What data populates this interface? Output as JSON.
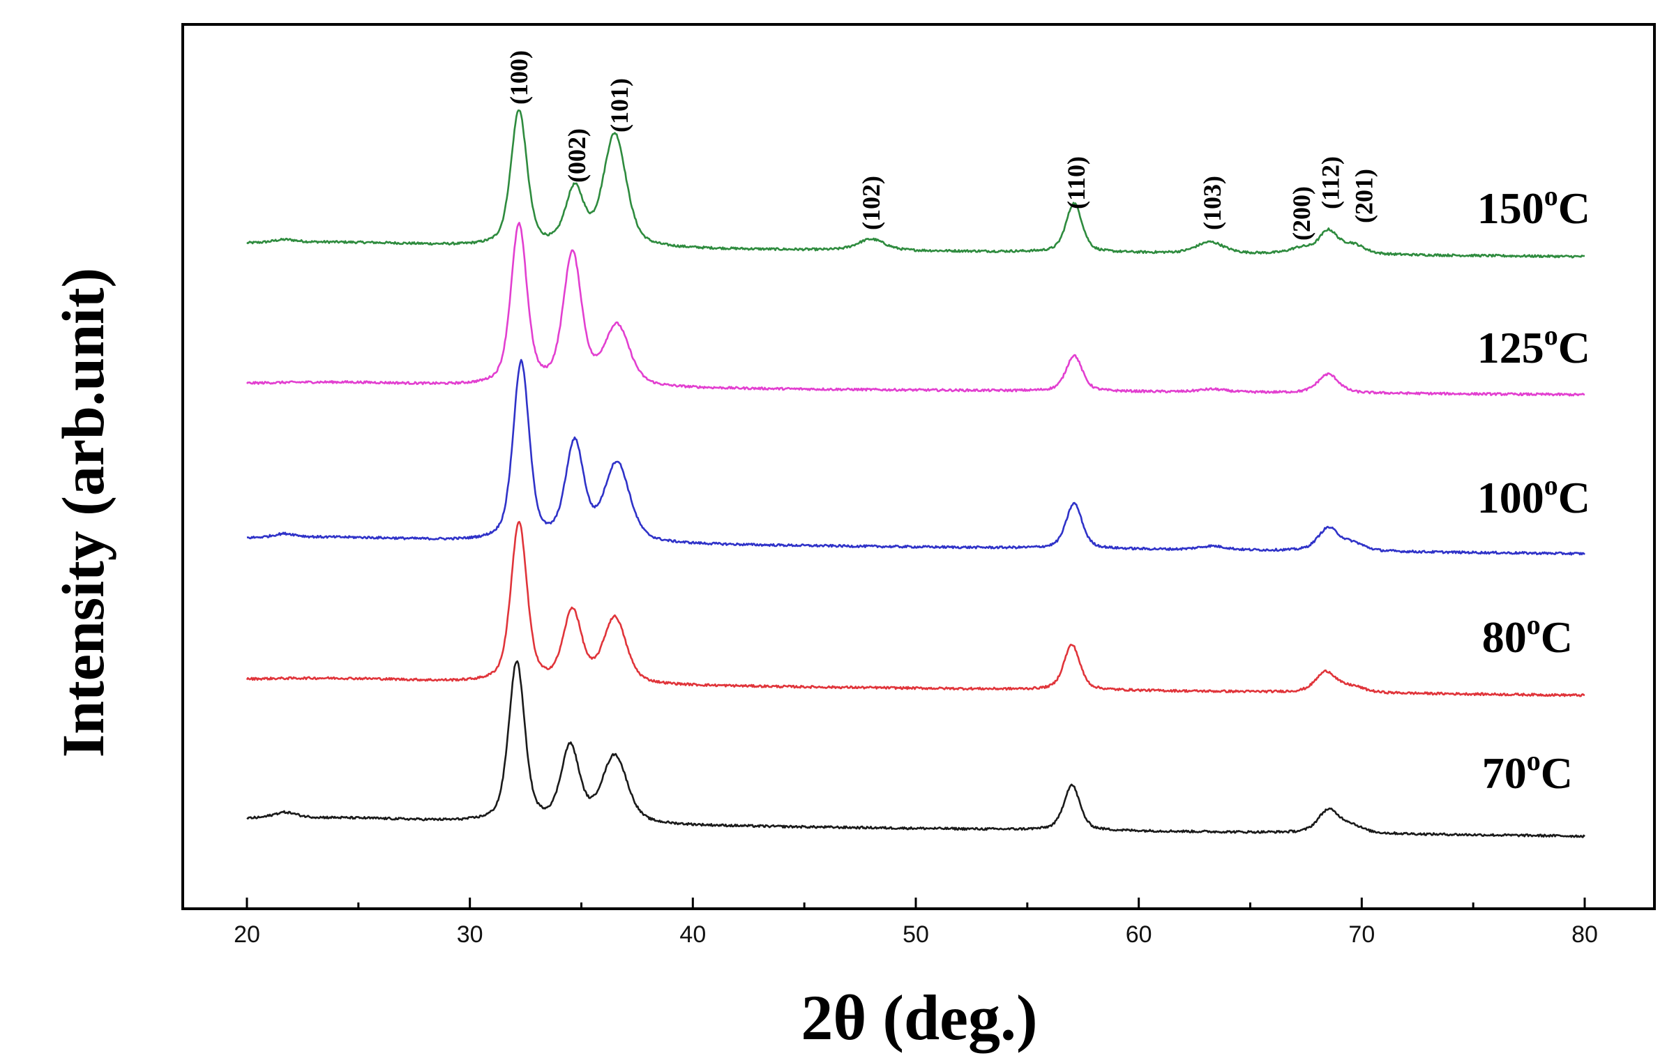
{
  "chart_data": {
    "type": "line",
    "title": "",
    "xlabel": "2θ   (deg.)",
    "ylabel": "Intensity (arb.unit)",
    "xlim": [
      17,
      82
    ],
    "xticks": [
      20,
      30,
      40,
      50,
      60,
      70,
      80
    ],
    "minor_xticks": [
      25,
      35,
      45,
      55,
      65,
      75
    ],
    "y_ticks_shown": false,
    "grid": false,
    "legend": "inline labels at right of each curve",
    "x_range": [
      20,
      80
    ],
    "series": [
      {
        "name": "150oC",
        "label_main": "150",
        "label_sup": "o",
        "label_unit": "C",
        "color": "#2e8b3e",
        "baseline_start": 0.0,
        "baseline_end": 0.0,
        "peaks": [
          [
            21.7,
            0.015,
            0.5
          ],
          [
            32.2,
            0.72,
            0.35
          ],
          [
            34.7,
            0.3,
            0.4
          ],
          [
            36.5,
            0.6,
            0.5
          ],
          [
            48.0,
            0.06,
            0.6
          ],
          [
            57.1,
            0.26,
            0.35
          ],
          [
            63.2,
            0.06,
            0.6
          ],
          [
            67.3,
            0.03,
            0.5
          ],
          [
            68.5,
            0.12,
            0.4
          ],
          [
            69.6,
            0.05,
            0.5
          ]
        ]
      },
      {
        "name": "125oC",
        "label_main": "125",
        "label_sup": "o",
        "label_unit": "C",
        "color": "#e23fd0",
        "baseline_start": 0.0,
        "baseline_end": 0.0,
        "peaks": [
          [
            32.2,
            0.85,
            0.35
          ],
          [
            34.6,
            0.7,
            0.4
          ],
          [
            36.6,
            0.32,
            0.55
          ],
          [
            57.1,
            0.19,
            0.35
          ],
          [
            63.3,
            0.015,
            0.6
          ],
          [
            68.5,
            0.1,
            0.45
          ]
        ]
      },
      {
        "name": "100oC",
        "label_main": "100",
        "label_sup": "o",
        "label_unit": "C",
        "color": "#2f32c8",
        "baseline_start": 0.0,
        "baseline_end": 0.0,
        "peaks": [
          [
            21.7,
            0.02,
            0.5
          ],
          [
            32.3,
            0.95,
            0.35
          ],
          [
            34.7,
            0.52,
            0.4
          ],
          [
            36.6,
            0.42,
            0.55
          ],
          [
            57.1,
            0.24,
            0.35
          ],
          [
            63.3,
            0.02,
            0.6
          ],
          [
            68.5,
            0.12,
            0.45
          ],
          [
            69.6,
            0.04,
            0.5
          ]
        ]
      },
      {
        "name": "80oC",
        "label_main": "80",
        "label_sup": "o",
        "label_unit": "C",
        "color": "#e0343a",
        "baseline_start": 0.0,
        "baseline_end": 0.0,
        "peaks": [
          [
            32.2,
            0.85,
            0.35
          ],
          [
            34.6,
            0.38,
            0.4
          ],
          [
            36.5,
            0.35,
            0.5
          ],
          [
            57.0,
            0.24,
            0.35
          ],
          [
            68.4,
            0.11,
            0.45
          ],
          [
            69.6,
            0.03,
            0.5
          ]
        ]
      },
      {
        "name": "70oC",
        "label_main": "70",
        "label_sup": "o",
        "label_unit": "C",
        "color": "#1a1a1a",
        "baseline_start": 0.0,
        "baseline_end": 0.0,
        "peaks": [
          [
            21.7,
            0.03,
            0.5
          ],
          [
            32.1,
            0.85,
            0.35
          ],
          [
            34.5,
            0.4,
            0.4
          ],
          [
            36.5,
            0.36,
            0.55
          ],
          [
            57.0,
            0.24,
            0.35
          ],
          [
            68.5,
            0.12,
            0.45
          ],
          [
            69.5,
            0.04,
            0.5
          ]
        ]
      }
    ],
    "peak_annotations": [
      {
        "label": "(100)",
        "x": 32.2
      },
      {
        "label": "(002)",
        "x": 34.8
      },
      {
        "label": "(101)",
        "x": 36.7
      },
      {
        "label": "(102)",
        "x": 48.0
      },
      {
        "label": "(110)",
        "x": 57.2
      },
      {
        "label": "(103)",
        "x": 63.3
      },
      {
        "label": "(200)",
        "x": 67.3
      },
      {
        "label": "(112)",
        "x": 68.6
      },
      {
        "label": "(201)",
        "x": 70.1
      }
    ]
  }
}
